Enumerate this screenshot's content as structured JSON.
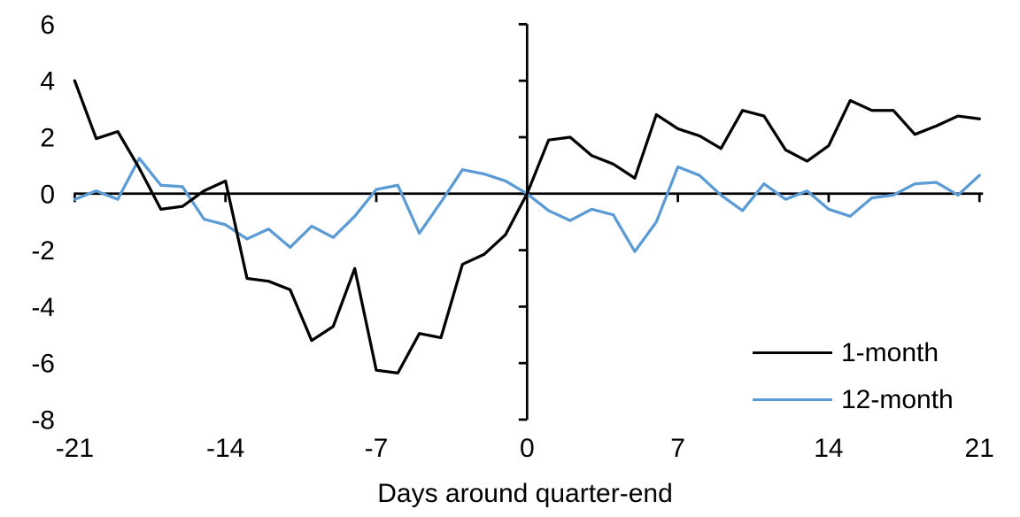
{
  "figure": {
    "background": "#FFFFFF",
    "axis_color": "#000000",
    "text_color": "#000000"
  },
  "chart_data": {
    "type": "line",
    "title": "",
    "xlabel": "Days around quarter-end",
    "ylabel": "",
    "xlim": [
      -21,
      21
    ],
    "ylim": [
      -8,
      6
    ],
    "x_ticks": [
      -21,
      -14,
      -7,
      0,
      7,
      14,
      21
    ],
    "y_ticks": [
      6,
      4,
      2,
      0,
      -2,
      -4,
      -6,
      -8
    ],
    "grid": false,
    "legend_position": "inside-bottom-right",
    "x": [
      -21,
      -20,
      -19,
      -18,
      -17,
      -16,
      -15,
      -14,
      -13,
      -12,
      -11,
      -10,
      -9,
      -8,
      -7,
      -6,
      -5,
      -4,
      -3,
      -2,
      -1,
      0,
      1,
      2,
      3,
      4,
      5,
      6,
      7,
      8,
      9,
      10,
      11,
      12,
      13,
      14,
      15,
      16,
      17,
      18,
      19,
      20,
      21
    ],
    "series": [
      {
        "name": "1-month",
        "color": "#000000",
        "values": [
          4.0,
          1.95,
          2.2,
          0.9,
          -0.55,
          -0.45,
          0.1,
          0.45,
          -3.0,
          -3.1,
          -3.4,
          -5.2,
          -4.7,
          -2.65,
          -6.25,
          -6.35,
          -4.95,
          -5.1,
          -2.5,
          -2.15,
          -1.45,
          0.0,
          1.9,
          2.0,
          1.35,
          1.05,
          0.55,
          2.8,
          2.3,
          2.05,
          1.6,
          2.95,
          2.75,
          1.55,
          1.15,
          1.7,
          3.3,
          2.95,
          2.95,
          2.1,
          2.4,
          2.75,
          2.65
        ]
      },
      {
        "name": "12-month",
        "color": "#5B9BD5",
        "values": [
          -0.2,
          0.1,
          -0.2,
          1.25,
          0.3,
          0.25,
          -0.9,
          -1.1,
          -1.6,
          -1.25,
          -1.9,
          -1.15,
          -1.55,
          -0.8,
          0.15,
          0.3,
          -1.4,
          -0.3,
          0.85,
          0.7,
          0.45,
          0.0,
          -0.6,
          -0.95,
          -0.55,
          -0.75,
          -2.05,
          -1.0,
          0.95,
          0.65,
          -0.05,
          -0.6,
          0.35,
          -0.2,
          0.1,
          -0.55,
          -0.8,
          -0.15,
          -0.05,
          0.35,
          0.4,
          -0.05,
          0.65
        ]
      }
    ]
  }
}
